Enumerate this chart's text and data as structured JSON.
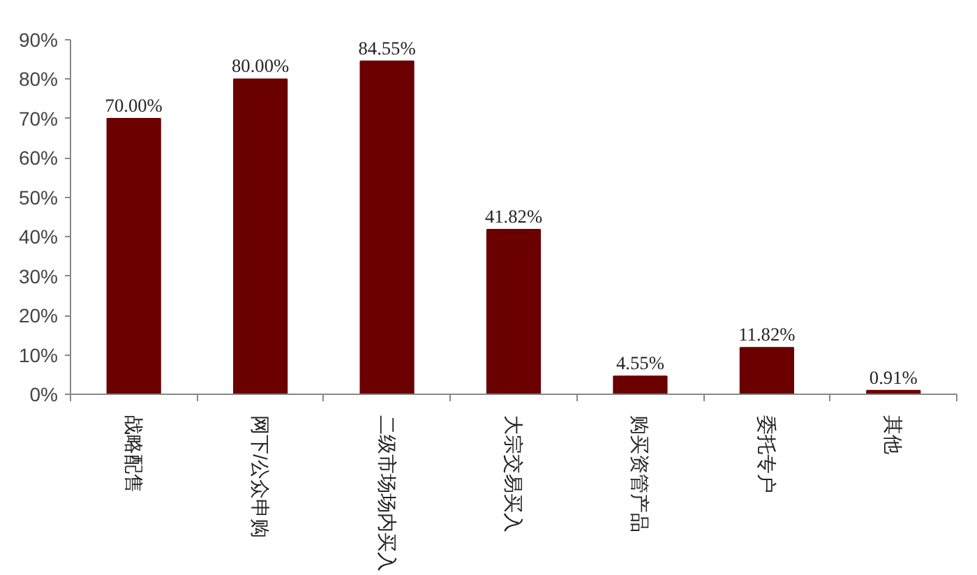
{
  "chart_data": {
    "type": "bar",
    "categories": [
      "战略配售",
      "网下/公众申购",
      "二级市场场内买入",
      "大宗交易买入",
      "购买资管产品",
      "委托专户",
      "其他"
    ],
    "values": [
      70.0,
      80.0,
      84.55,
      41.82,
      4.55,
      11.82,
      0.91
    ],
    "value_labels": [
      "70.00%",
      "80.00%",
      "84.55%",
      "41.82%",
      "4.55%",
      "11.82%",
      "0.91%"
    ],
    "color": "#6b0000",
    "ylim": [
      0,
      90
    ],
    "yticks": [
      {
        "value": 0,
        "label": "0%"
      },
      {
        "value": 10,
        "label": "10%"
      },
      {
        "value": 20,
        "label": "20%"
      },
      {
        "value": 30,
        "label": "30%"
      },
      {
        "value": 40,
        "label": "40%"
      },
      {
        "value": 50,
        "label": "50%"
      },
      {
        "value": 60,
        "label": "60%"
      },
      {
        "value": 70,
        "label": "70%"
      },
      {
        "value": 80,
        "label": "80%"
      },
      {
        "value": 90,
        "label": "90%"
      }
    ],
    "grid": false
  }
}
